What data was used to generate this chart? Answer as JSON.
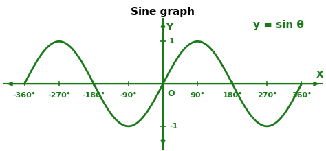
{
  "title": "Sine graph",
  "equation": "y = sin θ",
  "curve_color": "#1a7a1a",
  "axis_color": "#1a7a1a",
  "text_color": "#1a7a1a",
  "equation_color": "#1a7a1a",
  "background_color": "#ffffff",
  "x_ticks": [
    -360,
    -270,
    -180,
    -90,
    90,
    180,
    270,
    360
  ],
  "x_tick_labels": [
    "-360°",
    "-270°",
    "-180°",
    "-90°",
    "90°",
    "180°",
    "270°",
    "360°"
  ],
  "y_ticks": [
    -1,
    1
  ],
  "y_tick_labels": [
    "-1",
    "1"
  ],
  "xlim": [
    -415,
    415
  ],
  "ylim": [
    -1.55,
    1.55
  ],
  "origin_label": "O",
  "x_axis_label": "X",
  "y_axis_label": "Y",
  "title_fontsize": 11,
  "tick_fontsize": 8,
  "equation_fontsize": 11,
  "line_width": 2.0,
  "axis_lw": 1.5
}
